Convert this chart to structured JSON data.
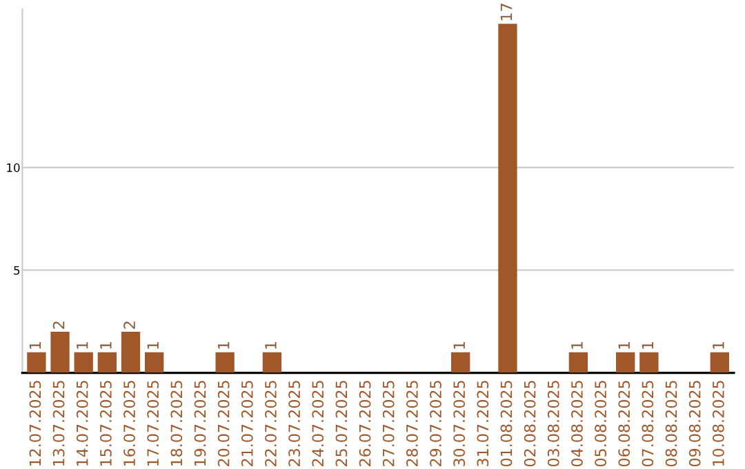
{
  "chart_data": {
    "type": "bar",
    "categories": [
      "12.07.2025",
      "13.07.2025",
      "14.07.2025",
      "15.07.2025",
      "16.07.2025",
      "17.07.2025",
      "18.07.2025",
      "19.07.2025",
      "20.07.2025",
      "21.07.2025",
      "22.07.2025",
      "23.07.2025",
      "24.07.2025",
      "25.07.2025",
      "26.07.2025",
      "27.07.2025",
      "28.07.2025",
      "29.07.2025",
      "30.07.2025",
      "31.07.2025",
      "01.08.2025",
      "02.08.2025",
      "03.08.2025",
      "04.08.2025",
      "05.08.2025",
      "06.08.2025",
      "07.08.2025",
      "08.08.2025",
      "09.08.2025",
      "10.08.2025"
    ],
    "values": [
      1,
      2,
      1,
      1,
      2,
      1,
      0,
      0,
      1,
      0,
      1,
      0,
      0,
      0,
      0,
      0,
      0,
      0,
      1,
      0,
      17,
      0,
      0,
      1,
      0,
      1,
      1,
      0,
      0,
      1
    ],
    "value_labels": [
      "1",
      "2",
      "1",
      "1",
      "2",
      "1",
      null,
      null,
      "1",
      null,
      "1",
      null,
      null,
      null,
      null,
      null,
      null,
      null,
      "1",
      null,
      "17",
      null,
      null,
      "1",
      null,
      "1",
      "1",
      null,
      null,
      "1"
    ],
    "color": "#a0582a",
    "ylim": [
      0,
      17.7
    ],
    "yticks": [
      5,
      10
    ],
    "grid": "y"
  }
}
